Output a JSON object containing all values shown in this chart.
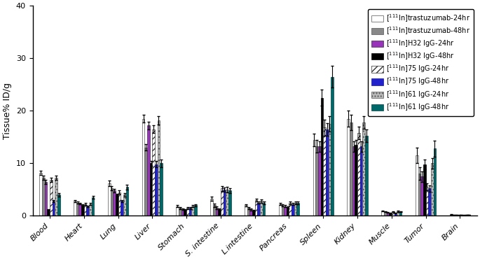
{
  "categories": [
    "Blood",
    "Heart",
    "Lung",
    "Liver",
    "Stomach",
    "S. intestine",
    "L.intestine",
    "Pancreas",
    "Spleen",
    "Kidney",
    "Muscle",
    "Tumor",
    "Brain"
  ],
  "series": [
    {
      "label": "[$^{111}$In]trastuzumab-24hr",
      "color": "white",
      "edgecolor": "#555555",
      "hatch": "",
      "values": [
        8.2,
        2.8,
        6.2,
        18.5,
        1.8,
        3.2,
        2.0,
        2.2,
        14.5,
        18.5,
        0.9,
        11.5,
        0.25
      ],
      "errors": [
        0.4,
        0.2,
        0.5,
        0.7,
        0.2,
        0.4,
        0.2,
        0.2,
        1.2,
        1.5,
        0.08,
        1.5,
        0.04
      ]
    },
    {
      "label": "[$^{111}$In]trastuzumab-48hr",
      "color": "#888888",
      "edgecolor": "#555555",
      "hatch": "",
      "values": [
        7.2,
        2.5,
        5.2,
        13.0,
        1.5,
        2.0,
        1.5,
        2.0,
        13.2,
        17.8,
        0.8,
        8.0,
        0.22
      ],
      "errors": [
        0.4,
        0.2,
        0.4,
        0.6,
        0.2,
        0.3,
        0.2,
        0.2,
        1.2,
        1.5,
        0.07,
        1.2,
        0.04
      ]
    },
    {
      "label": "[$^{111}$In]H32 IgG-24hr",
      "color": "#9933BB",
      "edgecolor": "#333333",
      "hatch": "",
      "values": [
        6.5,
        2.3,
        4.8,
        17.2,
        1.3,
        1.5,
        1.2,
        1.8,
        13.2,
        13.2,
        0.6,
        7.5,
        0.18
      ],
      "errors": [
        0.4,
        0.15,
        0.3,
        0.7,
        0.15,
        0.25,
        0.15,
        0.2,
        1.0,
        1.0,
        0.06,
        1.0,
        0.03
      ]
    },
    {
      "label": "[$^{111}$In]H32 IgG-48hr",
      "color": "black",
      "edgecolor": "black",
      "hatch": "",
      "values": [
        1.2,
        2.0,
        4.0,
        10.0,
        1.2,
        1.2,
        1.0,
        1.6,
        22.5,
        13.5,
        0.5,
        9.8,
        0.15
      ],
      "errors": [
        0.1,
        0.15,
        0.25,
        0.5,
        0.12,
        0.15,
        0.12,
        0.18,
        1.5,
        1.0,
        0.06,
        0.9,
        0.03
      ]
    },
    {
      "label": "[$^{111}$In]75 IgG-24hr",
      "color": "white",
      "edgecolor": "#333333",
      "hatch": "////",
      "values": [
        6.8,
        2.2,
        4.5,
        16.5,
        1.5,
        5.2,
        3.0,
        2.5,
        16.8,
        15.8,
        0.75,
        5.5,
        0.2
      ],
      "errors": [
        0.4,
        0.2,
        0.3,
        0.7,
        0.2,
        0.5,
        0.25,
        0.25,
        1.5,
        1.2,
        0.08,
        0.7,
        0.03
      ]
    },
    {
      "label": "[$^{111}$In]75 IgG-48hr",
      "color": "#2222CC",
      "edgecolor": "#111199",
      "hatch": "",
      "values": [
        2.8,
        1.8,
        2.8,
        9.8,
        1.5,
        5.0,
        2.5,
        2.2,
        16.5,
        13.2,
        0.5,
        5.2,
        0.12
      ],
      "errors": [
        0.25,
        0.15,
        0.2,
        0.6,
        0.18,
        0.4,
        0.22,
        0.2,
        1.2,
        1.0,
        0.06,
        0.6,
        0.02
      ]
    },
    {
      "label": "[$^{111}$In]61 IgG-24hr",
      "color": "#bbbbbb",
      "edgecolor": "#555555",
      "hatch": "....",
      "values": [
        7.2,
        2.2,
        4.0,
        18.2,
        1.8,
        5.0,
        2.8,
        2.5,
        17.5,
        17.8,
        0.85,
        10.0,
        0.2
      ],
      "errors": [
        0.4,
        0.2,
        0.3,
        0.8,
        0.2,
        0.5,
        0.28,
        0.28,
        1.5,
        1.2,
        0.08,
        1.0,
        0.03
      ]
    },
    {
      "label": "[$^{111}$In]61 IgG-48hr",
      "color": "#006868",
      "edgecolor": "#004444",
      "hatch": "",
      "values": [
        4.0,
        3.5,
        5.5,
        10.0,
        2.0,
        4.8,
        2.5,
        2.5,
        26.5,
        15.2,
        0.75,
        12.8,
        0.2
      ],
      "errors": [
        0.3,
        0.28,
        0.45,
        0.7,
        0.25,
        0.45,
        0.25,
        0.28,
        2.0,
        1.2,
        0.08,
        1.5,
        0.03
      ]
    }
  ],
  "ylabel": "Tissue% ID/g",
  "ylim": [
    0,
    40
  ],
  "yticks": [
    0,
    10,
    20,
    30,
    40
  ],
  "background_color": "white",
  "bar_width": 0.075,
  "legend_fontsize": 7,
  "axis_fontsize": 9,
  "tick_fontsize": 8
}
